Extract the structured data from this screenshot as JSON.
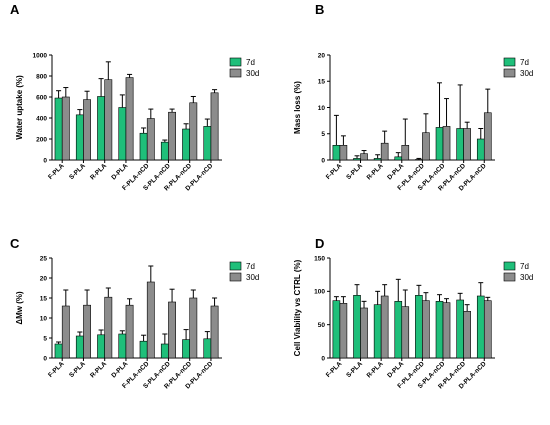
{
  "colors": {
    "7d": "#1fbf7a",
    "30d": "#8c8c8c",
    "axis": "#000000",
    "edge": "#000000"
  },
  "chart_data": [
    {
      "type": "bar",
      "panel": "A",
      "ylabel": "Water uptake (%)",
      "ylim": [
        0,
        1000
      ],
      "yticks": [
        0,
        200,
        400,
        600,
        800,
        1000
      ],
      "categories": [
        "F-PLA",
        "S-PLA",
        "R-PLA",
        "D-PLA",
        "F-PLA-nCD",
        "S-PLA-nCD",
        "R-PLA-nCD",
        "D-PLA-nCD"
      ],
      "legend": [
        "7d",
        "30d"
      ],
      "legend_position": "top-right",
      "series": [
        {
          "name": "7d",
          "values": [
            590,
            430,
            605,
            500,
            255,
            170,
            295,
            320
          ],
          "errors": [
            70,
            50,
            170,
            120,
            50,
            20,
            50,
            70
          ]
        },
        {
          "name": "30d",
          "values": [
            600,
            575,
            765,
            785,
            395,
            455,
            545,
            640
          ],
          "errors": [
            90,
            80,
            170,
            30,
            90,
            30,
            60,
            30
          ]
        }
      ]
    },
    {
      "type": "bar",
      "panel": "B",
      "ylabel": "Mass loss (%)",
      "ylim": [
        0,
        20
      ],
      "yticks": [
        0,
        5,
        10,
        15,
        20
      ],
      "categories": [
        "F-PLA",
        "S-PLA",
        "R-PLA",
        "D-PLA",
        "F-PLA-nCD",
        "S-PLA-nCD",
        "R-PLA-nCD",
        "D-PLA-nCD"
      ],
      "legend": [
        "7d",
        "30d"
      ],
      "legend_position": "top-right",
      "series": [
        {
          "name": "7d",
          "values": [
            2.8,
            0.3,
            0.3,
            0.6,
            0.1,
            6.2,
            6.0,
            4.0
          ],
          "errors": [
            5.7,
            0.5,
            0.7,
            0.8,
            0.2,
            8.5,
            8.3,
            2.0
          ]
        },
        {
          "name": "30d",
          "values": [
            2.8,
            1.2,
            3.2,
            2.8,
            5.2,
            6.4,
            6.0,
            9.0
          ],
          "errors": [
            1.8,
            0.6,
            2.3,
            5.0,
            3.6,
            5.3,
            1.2,
            4.5
          ]
        }
      ]
    },
    {
      "type": "bar",
      "panel": "C",
      "ylabel": "ΔMw (%)",
      "ylim": [
        0,
        25
      ],
      "yticks": [
        0,
        5,
        10,
        15,
        20,
        25
      ],
      "categories": [
        "F-PLA",
        "S-PLA",
        "R-PLA",
        "D-PLA",
        "F-PLA-nCD",
        "S-PLA-nCD",
        "R-PLA-nCD",
        "D-PLA-nCD"
      ],
      "legend": [
        "7d",
        "30d"
      ],
      "legend_position": "top-right",
      "series": [
        {
          "name": "7d",
          "values": [
            3.5,
            5.5,
            5.8,
            6.0,
            4.2,
            3.5,
            4.6,
            4.8
          ],
          "errors": [
            0.5,
            1.0,
            1.2,
            0.8,
            1.5,
            2.5,
            2.5,
            1.8
          ]
        },
        {
          "name": "30d",
          "values": [
            13.0,
            13.2,
            15.2,
            13.2,
            19.0,
            14.0,
            15.0,
            13.0
          ],
          "errors": [
            4.0,
            3.8,
            2.3,
            1.6,
            4.0,
            3.2,
            2.0,
            2.0
          ]
        }
      ]
    },
    {
      "type": "bar",
      "panel": "D",
      "ylabel": "Cell Viability vs CTRL (%)",
      "ylim": [
        0,
        150
      ],
      "yticks": [
        0,
        50,
        100,
        150
      ],
      "categories": [
        "F-PLA",
        "S-PLA",
        "R-PLA",
        "D-PLA",
        "F-PLA-nCD",
        "S-PLA-nCD",
        "R-PLA-nCD",
        "D-PLA-nCD"
      ],
      "legend": [
        "7d",
        "30d"
      ],
      "legend_position": "top-right",
      "series": [
        {
          "name": "7d",
          "values": [
            86,
            94,
            80,
            85,
            94,
            85,
            87,
            93
          ],
          "errors": [
            6,
            16,
            20,
            33,
            15,
            10,
            10,
            20
          ]
        },
        {
          "name": "30d",
          "values": [
            82,
            75,
            93,
            77,
            86,
            83,
            70,
            86
          ],
          "errors": [
            10,
            10,
            17,
            25,
            12,
            6,
            10,
            5
          ]
        }
      ]
    }
  ]
}
